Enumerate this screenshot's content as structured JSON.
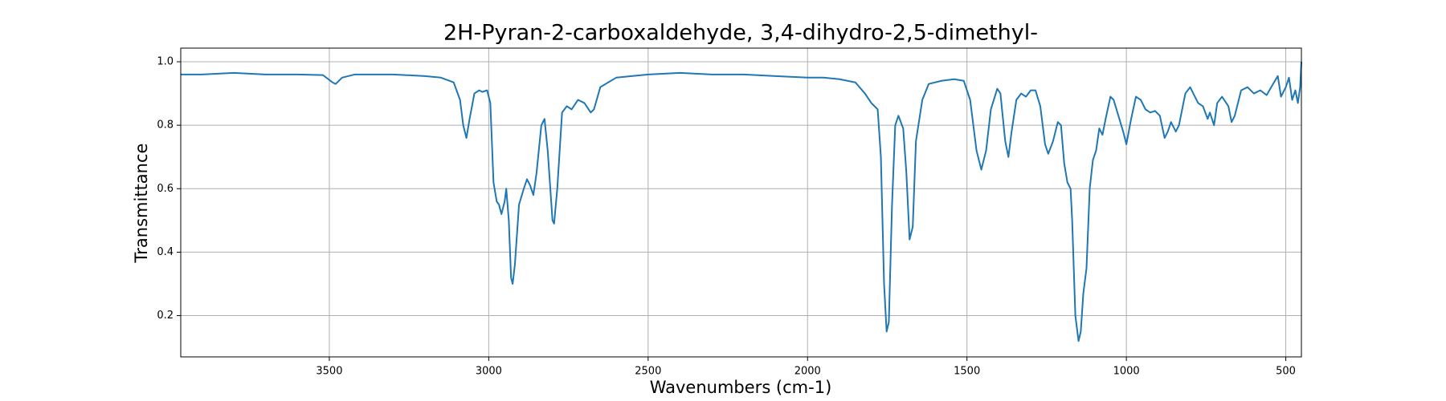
{
  "chart_data": {
    "type": "line",
    "title": "2H-Pyran-2-carboxaldehyde, 3,4-dihydro-2,5-dimethyl-",
    "x_label": "Wavenumbers (cm-1)",
    "y_label": "Transmittance",
    "color": "#1f77b4",
    "grid": true,
    "xlim": [
      3966,
      451
    ],
    "ylim": [
      0.07,
      1.043
    ],
    "xticks": [
      3500,
      3000,
      2500,
      2000,
      1500,
      1000,
      500
    ],
    "yticks": [
      0.2,
      0.4,
      0.6,
      0.8,
      {
        "value": 1,
        "label": "1.0"
      }
    ],
    "x": [
      3966,
      3900,
      3800,
      3700,
      3600,
      3520,
      3490,
      3480,
      3460,
      3420,
      3300,
      3200,
      3150,
      3110,
      3090,
      3080,
      3070,
      3060,
      3045,
      3030,
      3020,
      3005,
      2995,
      2985,
      2975,
      2968,
      2960,
      2950,
      2945,
      2937,
      2930,
      2925,
      2918,
      2905,
      2890,
      2880,
      2870,
      2860,
      2850,
      2835,
      2825,
      2815,
      2800,
      2795,
      2785,
      2770,
      2755,
      2740,
      2720,
      2700,
      2680,
      2670,
      2650,
      2600,
      2500,
      2400,
      2300,
      2200,
      2100,
      2000,
      1950,
      1900,
      1850,
      1820,
      1800,
      1780,
      1770,
      1760,
      1752,
      1745,
      1735,
      1725,
      1715,
      1700,
      1690,
      1680,
      1670,
      1660,
      1640,
      1620,
      1580,
      1540,
      1510,
      1490,
      1470,
      1455,
      1440,
      1425,
      1405,
      1395,
      1380,
      1370,
      1360,
      1345,
      1330,
      1315,
      1300,
      1285,
      1270,
      1255,
      1245,
      1230,
      1215,
      1205,
      1195,
      1185,
      1175,
      1170,
      1160,
      1150,
      1143,
      1135,
      1125,
      1115,
      1105,
      1095,
      1085,
      1075,
      1065,
      1050,
      1040,
      1025,
      1010,
      1000,
      985,
      970,
      955,
      940,
      925,
      910,
      895,
      880,
      870,
      860,
      845,
      835,
      815,
      800,
      790,
      775,
      760,
      745,
      738,
      725,
      715,
      700,
      680,
      670,
      660,
      640,
      620,
      600,
      580,
      560,
      540,
      525,
      515,
      500,
      490,
      480,
      470,
      462,
      455,
      451
    ],
    "values": [
      0.96,
      0.96,
      0.965,
      0.96,
      0.96,
      0.958,
      0.935,
      0.93,
      0.95,
      0.96,
      0.96,
      0.955,
      0.95,
      0.935,
      0.88,
      0.8,
      0.76,
      0.82,
      0.9,
      0.91,
      0.905,
      0.91,
      0.87,
      0.62,
      0.56,
      0.55,
      0.52,
      0.56,
      0.6,
      0.5,
      0.32,
      0.3,
      0.36,
      0.55,
      0.6,
      0.63,
      0.61,
      0.58,
      0.65,
      0.8,
      0.82,
      0.72,
      0.5,
      0.49,
      0.6,
      0.84,
      0.86,
      0.85,
      0.88,
      0.87,
      0.84,
      0.85,
      0.92,
      0.95,
      0.96,
      0.965,
      0.96,
      0.96,
      0.955,
      0.95,
      0.95,
      0.945,
      0.935,
      0.9,
      0.87,
      0.85,
      0.7,
      0.3,
      0.15,
      0.18,
      0.55,
      0.8,
      0.83,
      0.79,
      0.65,
      0.44,
      0.48,
      0.75,
      0.88,
      0.93,
      0.94,
      0.945,
      0.94,
      0.88,
      0.72,
      0.66,
      0.72,
      0.85,
      0.915,
      0.9,
      0.75,
      0.7,
      0.78,
      0.88,
      0.9,
      0.89,
      0.91,
      0.91,
      0.86,
      0.74,
      0.71,
      0.75,
      0.81,
      0.8,
      0.68,
      0.62,
      0.6,
      0.5,
      0.2,
      0.12,
      0.15,
      0.27,
      0.35,
      0.6,
      0.69,
      0.72,
      0.79,
      0.77,
      0.82,
      0.89,
      0.88,
      0.83,
      0.78,
      0.74,
      0.82,
      0.89,
      0.88,
      0.85,
      0.84,
      0.845,
      0.83,
      0.76,
      0.78,
      0.81,
      0.78,
      0.8,
      0.9,
      0.92,
      0.9,
      0.87,
      0.86,
      0.82,
      0.84,
      0.8,
      0.87,
      0.89,
      0.86,
      0.81,
      0.83,
      0.91,
      0.92,
      0.9,
      0.91,
      0.895,
      0.93,
      0.955,
      0.89,
      0.92,
      0.95,
      0.88,
      0.91,
      0.87,
      0.92,
      1.0
    ]
  }
}
